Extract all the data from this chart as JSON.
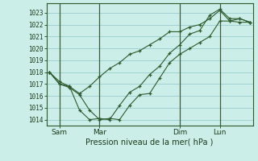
{
  "xlabel": "Pression niveau de la mer( hPa )",
  "background_color": "#cceee8",
  "grid_color": "#99cccc",
  "line_color": "#2d5a2d",
  "vline_color": "#3a5a3a",
  "ylim": [
    1013.5,
    1023.8
  ],
  "xlim": [
    -0.3,
    20.3
  ],
  "xtick_labels": [
    "Sam",
    "Mar",
    "Dim",
    "Lun"
  ],
  "xtick_positions": [
    1,
    5,
    13,
    17
  ],
  "vline_positions": [
    1,
    5,
    13,
    17
  ],
  "yticks": [
    1014,
    1015,
    1016,
    1017,
    1018,
    1019,
    1020,
    1021,
    1022,
    1023
  ],
  "series1_x": [
    0,
    1,
    2,
    3,
    4,
    5,
    6,
    7,
    8,
    9,
    10,
    11,
    12,
    13,
    14,
    15,
    16,
    17,
    18,
    19,
    20
  ],
  "series1_y": [
    1018.0,
    1017.2,
    1016.8,
    1016.2,
    1016.8,
    1017.6,
    1018.3,
    1018.8,
    1019.5,
    1019.8,
    1020.3,
    1020.8,
    1021.4,
    1021.4,
    1021.8,
    1022.0,
    1022.5,
    1023.2,
    1022.3,
    1022.5,
    1022.2
  ],
  "series2_x": [
    0,
    1,
    2,
    3,
    4,
    5,
    6,
    7,
    8,
    9,
    10,
    11,
    12,
    13,
    14,
    15,
    16,
    17,
    18,
    19,
    20
  ],
  "series2_y": [
    1018.0,
    1017.0,
    1016.7,
    1016.1,
    1014.8,
    1014.0,
    1014.1,
    1014.0,
    1015.2,
    1016.1,
    1016.2,
    1017.5,
    1018.8,
    1019.5,
    1020.0,
    1020.5,
    1021.0,
    1022.3,
    1022.3,
    1022.2,
    1022.2
  ],
  "series3_x": [
    0,
    1,
    2,
    3,
    4,
    5,
    6,
    7,
    8,
    9,
    10,
    11,
    12,
    13,
    14,
    15,
    16,
    17,
    18,
    19,
    20
  ],
  "series3_y": [
    1018.0,
    1017.0,
    1016.8,
    1014.8,
    1014.0,
    1014.1,
    1014.0,
    1015.2,
    1016.3,
    1016.8,
    1017.8,
    1018.5,
    1019.6,
    1020.3,
    1021.2,
    1021.5,
    1022.8,
    1023.3,
    1022.5,
    1022.5,
    1022.2
  ]
}
